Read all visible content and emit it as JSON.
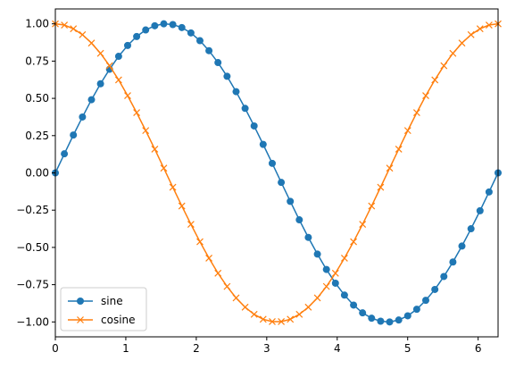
{
  "chart_data": {
    "type": "line",
    "title": "",
    "xlabel": "",
    "ylabel": "",
    "xlim": [
      0,
      6.283
    ],
    "ylim": [
      -1.1,
      1.1
    ],
    "grid": false,
    "legend_position": "lower-left",
    "x_ticks": [
      0,
      1,
      2,
      3,
      4,
      5,
      6
    ],
    "y_ticks": [
      -1.0,
      -0.75,
      -0.5,
      -0.25,
      0.0,
      0.25,
      0.5,
      0.75,
      1.0
    ],
    "x_tick_labels": [
      "0",
      "1",
      "2",
      "3",
      "4",
      "5",
      "6"
    ],
    "y_tick_labels": [
      "−1.00",
      "−0.75",
      "−0.50",
      "−0.25",
      "0.00",
      "0.25",
      "0.50",
      "0.75",
      "1.00"
    ],
    "x": [
      0.0,
      0.128,
      0.256,
      0.385,
      0.513,
      0.641,
      0.769,
      0.898,
      1.026,
      1.154,
      1.282,
      1.411,
      1.539,
      1.667,
      1.795,
      1.924,
      2.052,
      2.18,
      2.308,
      2.437,
      2.565,
      2.693,
      2.821,
      2.949,
      3.078,
      3.206,
      3.334,
      3.462,
      3.59,
      3.719,
      3.847,
      3.975,
      4.103,
      4.232,
      4.36,
      4.488,
      4.616,
      4.744,
      4.873,
      5.001,
      5.129,
      5.257,
      5.386,
      5.514,
      5.642,
      5.77,
      5.899,
      6.027,
      6.155,
      6.283
    ],
    "series": [
      {
        "name": "sine",
        "color": "#1f77b4",
        "marker": "circle",
        "values": [
          0.0,
          0.128,
          0.254,
          0.375,
          0.491,
          0.598,
          0.695,
          0.782,
          0.855,
          0.915,
          0.959,
          0.987,
          1.0,
          0.995,
          0.975,
          0.939,
          0.887,
          0.82,
          0.74,
          0.648,
          0.545,
          0.433,
          0.315,
          0.191,
          0.064,
          -0.064,
          -0.191,
          -0.315,
          -0.433,
          -0.545,
          -0.648,
          -0.74,
          -0.82,
          -0.887,
          -0.939,
          -0.975,
          -0.995,
          -1.0,
          -0.987,
          -0.959,
          -0.915,
          -0.855,
          -0.782,
          -0.695,
          -0.598,
          -0.491,
          -0.375,
          -0.254,
          -0.128,
          0.0
        ]
      },
      {
        "name": "cosine",
        "color": "#ff7f0e",
        "marker": "x",
        "values": [
          1.0,
          0.992,
          0.967,
          0.927,
          0.871,
          0.802,
          0.719,
          0.624,
          0.518,
          0.404,
          0.284,
          0.159,
          0.032,
          -0.096,
          -0.222,
          -0.345,
          -0.462,
          -0.572,
          -0.673,
          -0.762,
          -0.839,
          -0.901,
          -0.949,
          -0.982,
          -0.998,
          -0.998,
          -0.982,
          -0.949,
          -0.901,
          -0.839,
          -0.762,
          -0.673,
          -0.572,
          -0.462,
          -0.345,
          -0.222,
          -0.096,
          0.032,
          0.159,
          0.284,
          0.404,
          0.518,
          0.624,
          0.719,
          0.802,
          0.871,
          0.927,
          0.967,
          0.992,
          1.0
        ]
      }
    ]
  }
}
